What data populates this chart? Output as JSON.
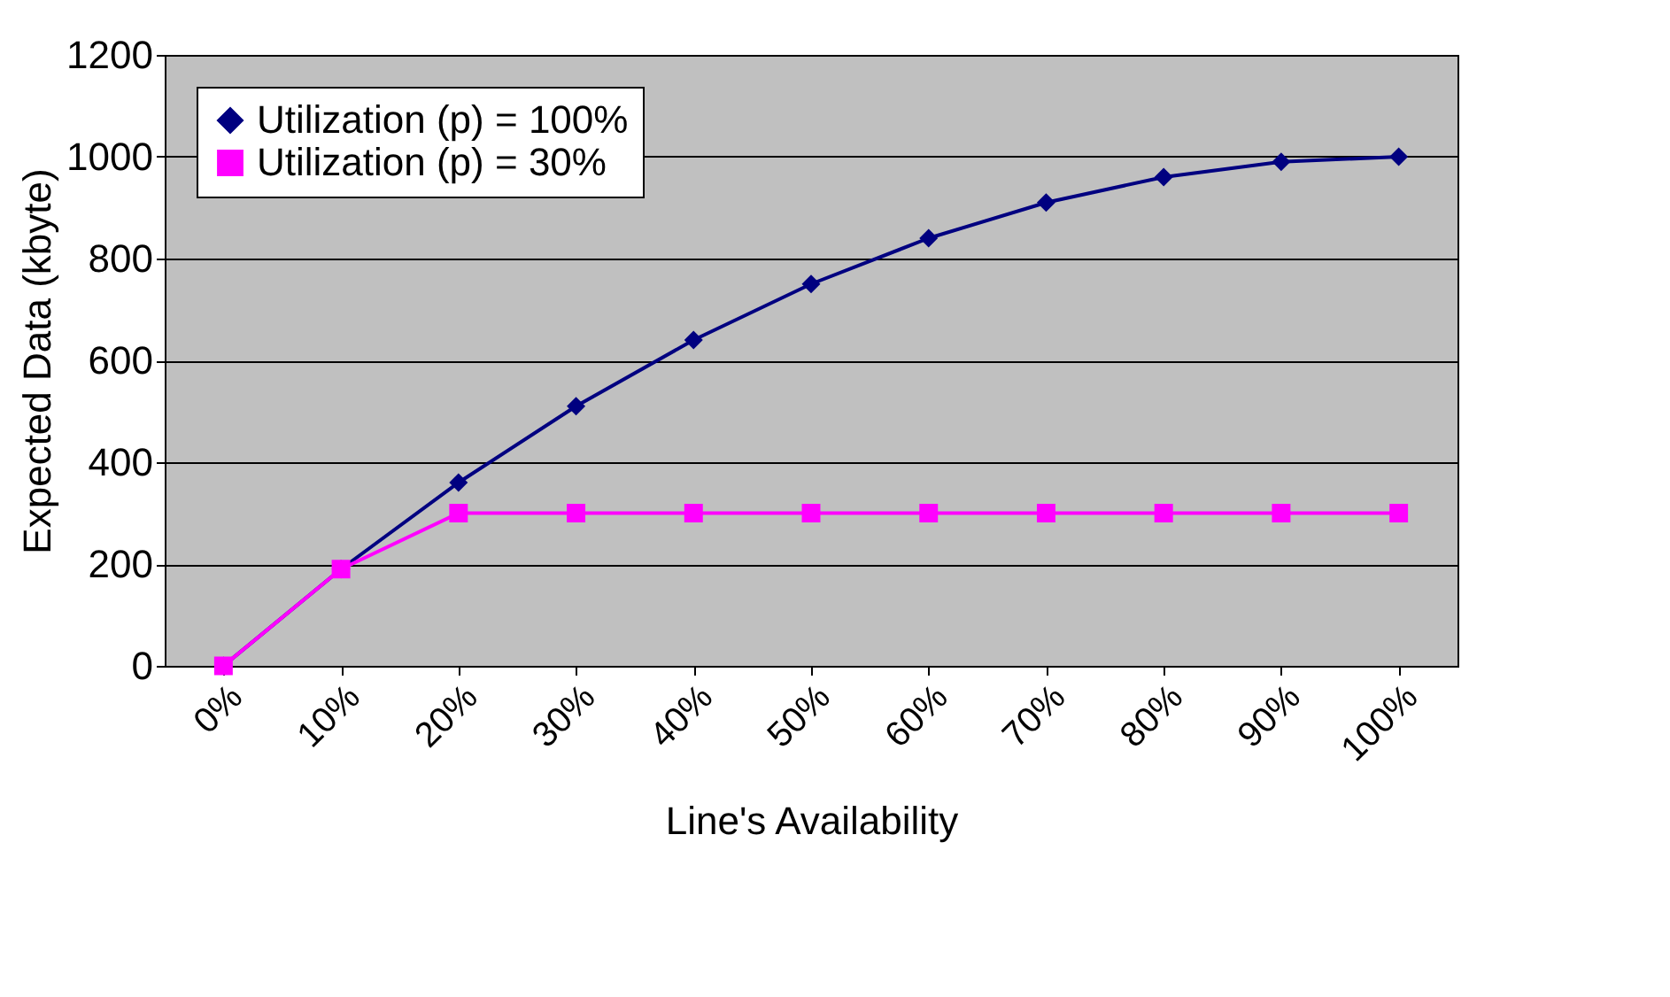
{
  "chart_data": {
    "type": "line",
    "xlabel": "Line's Availability",
    "ylabel": "Expected Data (kbyte)",
    "categories": [
      "0%",
      "10%",
      "20%",
      "30%",
      "40%",
      "50%",
      "60%",
      "70%",
      "80%",
      "90%",
      "100%"
    ],
    "series": [
      {
        "name": "Utilization (p) = 100%",
        "color": "#000080",
        "marker": "diamond",
        "values": [
          0,
          190,
          360,
          510,
          640,
          750,
          840,
          910,
          960,
          990,
          1000
        ]
      },
      {
        "name": "Utilization (p) = 30%",
        "color": "#ff00ff",
        "marker": "square",
        "values": [
          0,
          190,
          300,
          300,
          300,
          300,
          300,
          300,
          300,
          300,
          300
        ]
      }
    ],
    "ylim": [
      0,
      1200
    ],
    "yticks": [
      0,
      200,
      400,
      600,
      800,
      1000,
      1200
    ],
    "grid": "y",
    "legend": "top left",
    "line_style": "solid"
  }
}
